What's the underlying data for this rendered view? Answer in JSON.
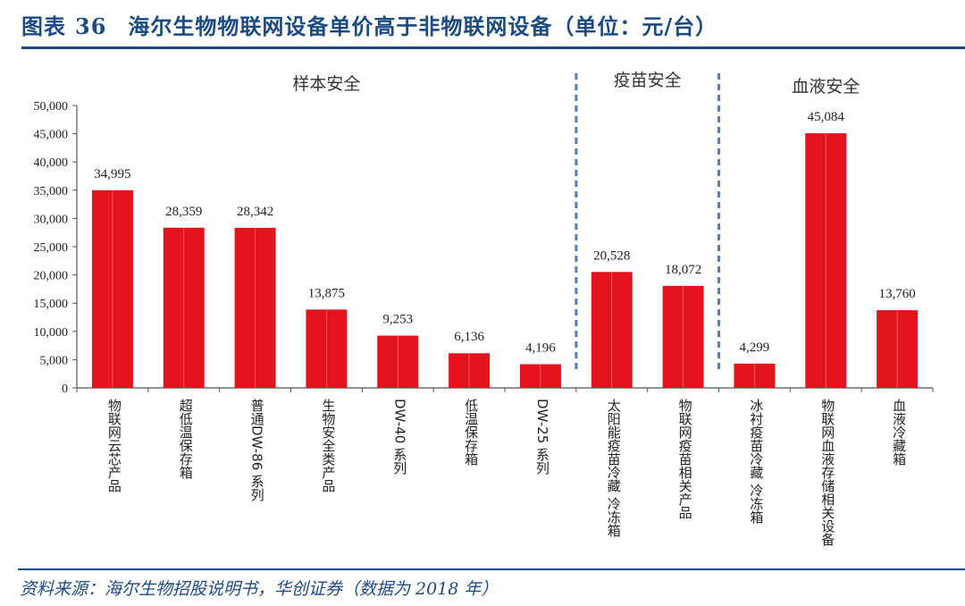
{
  "header": {
    "figure_label": "图表",
    "figure_number": "36",
    "title": "海尔生物物联网设备单价高于非物联网设备（单位：元/台）"
  },
  "footer": {
    "source": "资料来源：海尔生物招股说明书，华创证券（数据为 2018 年）"
  },
  "colors": {
    "bar": "#e3141e",
    "title": "#1c4a82",
    "divider": "#4a7fc1",
    "axis": "#555555"
  },
  "chart_data": {
    "type": "bar",
    "title": "海尔生物物联网设备单价高于非物联网设备（单位：元/台）",
    "xlabel": "",
    "ylabel": "",
    "ylim": [
      0,
      50000
    ],
    "yticks": [
      0,
      5000,
      10000,
      15000,
      20000,
      25000,
      30000,
      35000,
      40000,
      45000,
      50000
    ],
    "ytick_labels": [
      "0",
      "5,000",
      "10,000",
      "15,000",
      "20,000",
      "25,000",
      "30,000",
      "35,000",
      "40,000",
      "45,000",
      "50,000"
    ],
    "grid": false,
    "categories": [
      "物联网云芯产品",
      "超低温保存箱",
      "普通DW-86 系列",
      "生物安全类产品",
      "DW-40 系列",
      "低温保存箱",
      "DW-25 系列",
      "太阳能疫苗冷藏 冷冻箱",
      "物联网疫苗相关产品",
      "冰衬疫苗冷藏 冷冻箱",
      "物联网血液存储相关设备",
      "血液冷藏箱"
    ],
    "values": [
      34995,
      28359,
      28342,
      13875,
      9253,
      6136,
      4196,
      20528,
      18072,
      4299,
      45084,
      13760
    ],
    "value_labels": [
      "34,995",
      "28,359",
      "28,342",
      "13,875",
      "9,253",
      "6,136",
      "4,196",
      "20,528",
      "18,072",
      "4,299",
      "45,084",
      "13,760"
    ],
    "groups": [
      {
        "name": "样本安全",
        "start": 0,
        "end": 6
      },
      {
        "name": "疫苗安全",
        "start": 7,
        "end": 8
      },
      {
        "name": "血液安全",
        "start": 9,
        "end": 11
      }
    ]
  }
}
